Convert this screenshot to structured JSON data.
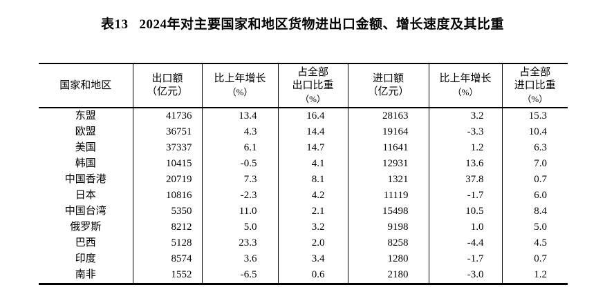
{
  "title": {
    "prefix": "表13",
    "text": "2024年对主要国家和地区货物进出口金额、增长速度及其比重"
  },
  "colors": {
    "text": "#000000",
    "border": "#000000",
    "background": "#ffffff"
  },
  "table": {
    "columns": [
      {
        "key": "region",
        "label_lines": [
          "国家和地区"
        ]
      },
      {
        "key": "export-value",
        "label_lines": [
          "出口额",
          "（亿元）"
        ]
      },
      {
        "key": "export-growth",
        "label_lines": [
          "比上年增长",
          "（%）"
        ]
      },
      {
        "key": "export-share",
        "label_lines": [
          "占全部",
          "出口比重",
          "（%）"
        ]
      },
      {
        "key": "import-value",
        "label_lines": [
          "进口额",
          "（亿元）"
        ]
      },
      {
        "key": "import-growth",
        "label_lines": [
          "比上年增长",
          "（%）"
        ]
      },
      {
        "key": "import-share",
        "label_lines": [
          "占全部",
          "进口比重",
          "（%）"
        ]
      }
    ],
    "rows": [
      [
        "东盟",
        "41736",
        "13.4",
        "16.4",
        "28163",
        "3.2",
        "15.3"
      ],
      [
        "欧盟",
        "36751",
        "4.3",
        "14.4",
        "19164",
        "-3.3",
        "10.4"
      ],
      [
        "美国",
        "37337",
        "6.1",
        "14.7",
        "11641",
        "1.2",
        "6.3"
      ],
      [
        "韩国",
        "10415",
        "-0.5",
        "4.1",
        "12931",
        "13.6",
        "7.0"
      ],
      [
        "中国香港",
        "20719",
        "7.3",
        "8.1",
        "1321",
        "37.8",
        "0.7"
      ],
      [
        "日本",
        "10816",
        "-2.3",
        "4.2",
        "11119",
        "-1.7",
        "6.0"
      ],
      [
        "中国台湾",
        "5350",
        "11.0",
        "2.1",
        "15498",
        "10.5",
        "8.4"
      ],
      [
        "俄罗斯",
        "8212",
        "5.0",
        "3.2",
        "9198",
        "1.0",
        "5.0"
      ],
      [
        "巴西",
        "5128",
        "23.3",
        "2.0",
        "8258",
        "-4.4",
        "4.5"
      ],
      [
        "印度",
        "8574",
        "3.6",
        "3.4",
        "1280",
        "-1.7",
        "0.7"
      ],
      [
        "南非",
        "1552",
        "-6.5",
        "0.6",
        "2180",
        "-3.0",
        "1.2"
      ]
    ]
  }
}
